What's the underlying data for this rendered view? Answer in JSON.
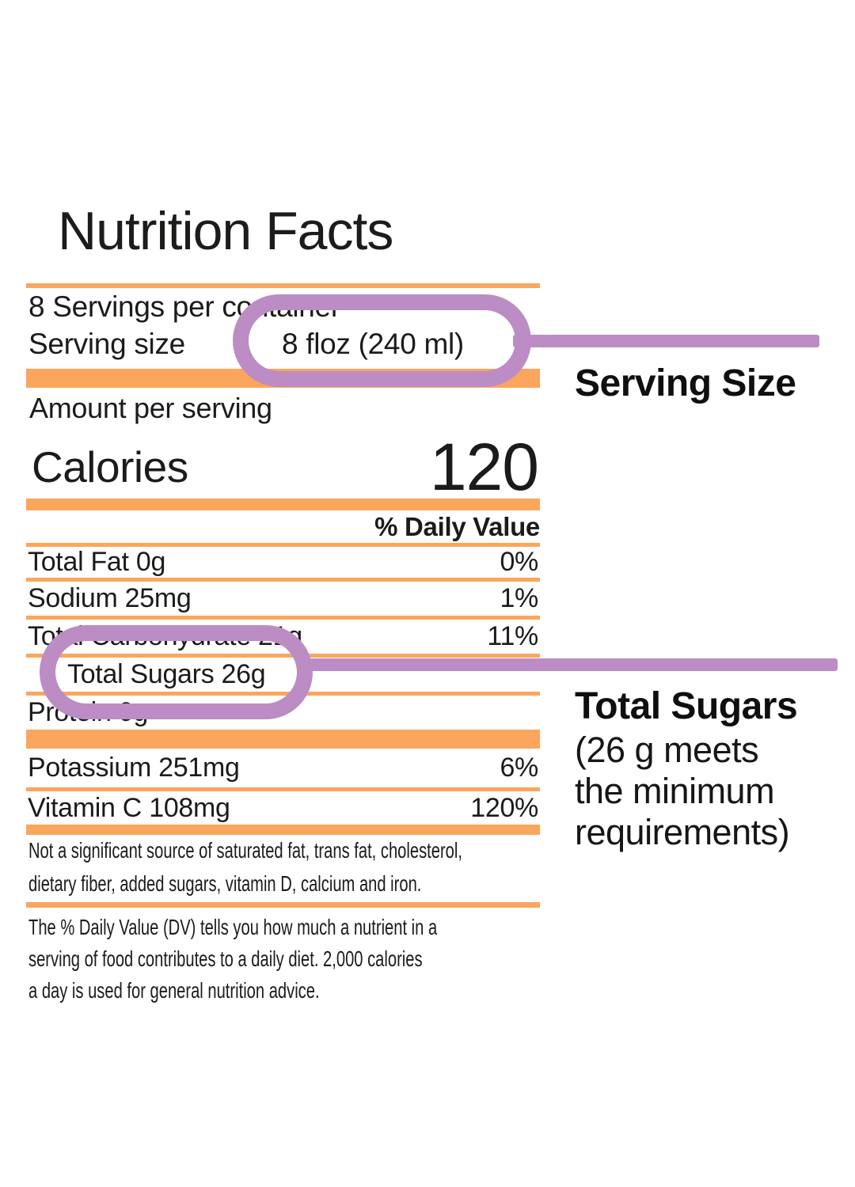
{
  "colors": {
    "orange": "#FAA65C",
    "purple": "#BC8CC4",
    "text": "#1C1B1A"
  },
  "label": {
    "title": "Nutrition Facts",
    "servings_per_container": "8 Servings per container",
    "serving_size_label": "Serving size",
    "serving_size_value": "8 floz (240 ml)",
    "amount_per_serving": "Amount per serving",
    "calories_label": "Calories",
    "calories_value": "120",
    "daily_value_header": "% Daily Value",
    "rows": [
      {
        "name": "Total Fat 0g",
        "value": "0%"
      },
      {
        "name": "Sodium 25mg",
        "value": "1%"
      },
      {
        "name": "Total Carbohydrate 21g",
        "value": "11%"
      },
      {
        "name": "Total Sugars 26g",
        "value": ""
      },
      {
        "name": "Protein 0g",
        "value": ""
      },
      {
        "name": "Potassium  251mg",
        "value": "6%"
      },
      {
        "name": "Vitamin C  108mg",
        "value": "120%"
      }
    ],
    "footnote_not_significant": {
      "line1": "Not a significant source of saturated fat, trans fat, cholesterol,",
      "line2": "dietary fiber, added sugars, vitamin D, calcium and iron."
    },
    "footnote_daily_value": {
      "line1": "The % Daily Value (DV) tells you how much a nutrient in a",
      "line2": "serving of food contributes to a daily diet. 2,000 calories",
      "line3": "a day is used for general nutrition advice."
    }
  },
  "annotations": {
    "serving_size_title": "Serving Size",
    "total_sugars_title": "Total Sugars",
    "total_sugars_note": {
      "line1": "(26 g meets",
      "line2": "the minimum",
      "line3": "requirements)"
    }
  }
}
